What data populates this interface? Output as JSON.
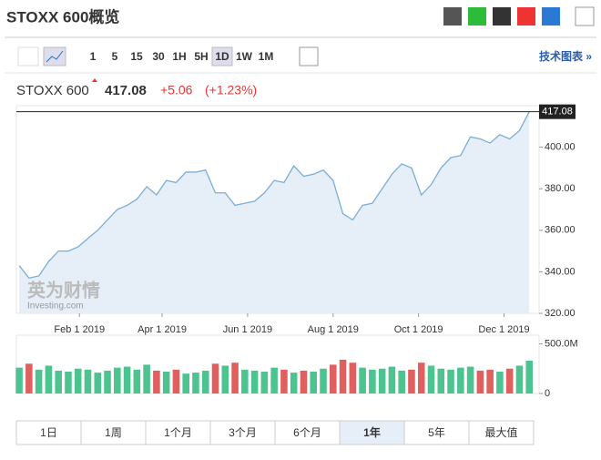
{
  "header": {
    "title": "STOXX 600概览"
  },
  "toolbar": {
    "intervals": [
      "1",
      "5",
      "15",
      "30",
      "1H",
      "5H",
      "1D",
      "1W",
      "1M"
    ],
    "active_interval": 6,
    "tech_chart": "技术图表 »"
  },
  "quote": {
    "name": "STOXX 600",
    "price": "417.08",
    "change": "+5.06",
    "change_pct": "(+1.23%)"
  },
  "watermark": {
    "cn": "英为财情",
    "en": "Investing.com"
  },
  "tabs": {
    "items": [
      "1日",
      "1周",
      "1个月",
      "3个月",
      "6个月",
      "1年",
      "5年",
      "最大值"
    ],
    "active": 5
  },
  "chart_data": [
    {
      "type": "area",
      "color": "#7aaed6",
      "fill": "#e6eff7",
      "x": [
        "2018-12-20",
        "2018-12-27",
        "2019-01-03",
        "2019-01-10",
        "2019-01-17",
        "2019-01-24",
        "2019-01-31",
        "2019-02-07",
        "2019-02-14",
        "2019-02-21",
        "2019-02-28",
        "2019-03-07",
        "2019-03-14",
        "2019-03-21",
        "2019-03-28",
        "2019-04-04",
        "2019-04-11",
        "2019-04-18",
        "2019-04-25",
        "2019-05-02",
        "2019-05-09",
        "2019-05-16",
        "2019-05-23",
        "2019-05-30",
        "2019-06-06",
        "2019-06-13",
        "2019-06-20",
        "2019-06-27",
        "2019-07-04",
        "2019-07-11",
        "2019-07-18",
        "2019-07-25",
        "2019-08-01",
        "2019-08-08",
        "2019-08-15",
        "2019-08-22",
        "2019-08-29",
        "2019-09-05",
        "2019-09-12",
        "2019-09-19",
        "2019-09-26",
        "2019-10-03",
        "2019-10-10",
        "2019-10-17",
        "2019-10-24",
        "2019-10-31",
        "2019-11-07",
        "2019-11-14",
        "2019-11-21",
        "2019-11-28",
        "2019-12-05",
        "2019-12-12",
        "2019-12-19"
      ],
      "values": [
        343,
        337,
        338,
        345,
        350,
        350,
        352,
        356,
        360,
        365,
        370,
        372,
        375,
        381,
        377,
        384,
        383,
        388,
        388,
        389,
        378,
        378,
        372,
        373,
        374,
        378,
        384,
        383,
        391,
        386,
        387,
        389,
        384,
        368,
        365,
        372,
        373,
        380,
        387,
        392,
        390,
        377,
        382,
        390,
        395,
        396,
        405,
        404,
        402,
        406,
        404,
        408,
        417.08
      ],
      "xlim": [
        "2018-12-18",
        "2019-12-26"
      ],
      "xticks": [
        {
          "value": "2019-02-01",
          "label": "Feb 1 2019"
        },
        {
          "value": "2019-04-01",
          "label": "Apr 1 2019"
        },
        {
          "value": "2019-06-01",
          "label": "Jun 1 2019"
        },
        {
          "value": "2019-08-01",
          "label": "Aug 1 2019"
        },
        {
          "value": "2019-10-01",
          "label": "Oct 1 2019"
        },
        {
          "value": "2019-12-01",
          "label": "Dec 1 2019"
        }
      ],
      "ylim": [
        320,
        420
      ],
      "yticks": [
        {
          "value": 320,
          "label": "320.00"
        },
        {
          "value": 340,
          "label": "340.00"
        },
        {
          "value": 360,
          "label": "360.00"
        },
        {
          "value": 380,
          "label": "380.00"
        },
        {
          "value": 400,
          "label": "400.00"
        }
      ]
    },
    {
      "type": "bar",
      "colors": {
        "up": "#4dc48f",
        "down": "#e06060"
      },
      "values": [
        260,
        300,
        240,
        280,
        230,
        220,
        250,
        240,
        210,
        230,
        260,
        270,
        240,
        290,
        230,
        220,
        240,
        200,
        210,
        230,
        300,
        280,
        310,
        240,
        230,
        220,
        260,
        240,
        210,
        230,
        220,
        250,
        290,
        340,
        310,
        260,
        240,
        250,
        270,
        230,
        240,
        310,
        280,
        250,
        240,
        260,
        270,
        230,
        240,
        220,
        250,
        280,
        330
      ],
      "ylim": [
        0,
        550
      ],
      "yticks": [
        0,
        {
          "value": 500,
          "label": "500.0M"
        }
      ]
    }
  ]
}
